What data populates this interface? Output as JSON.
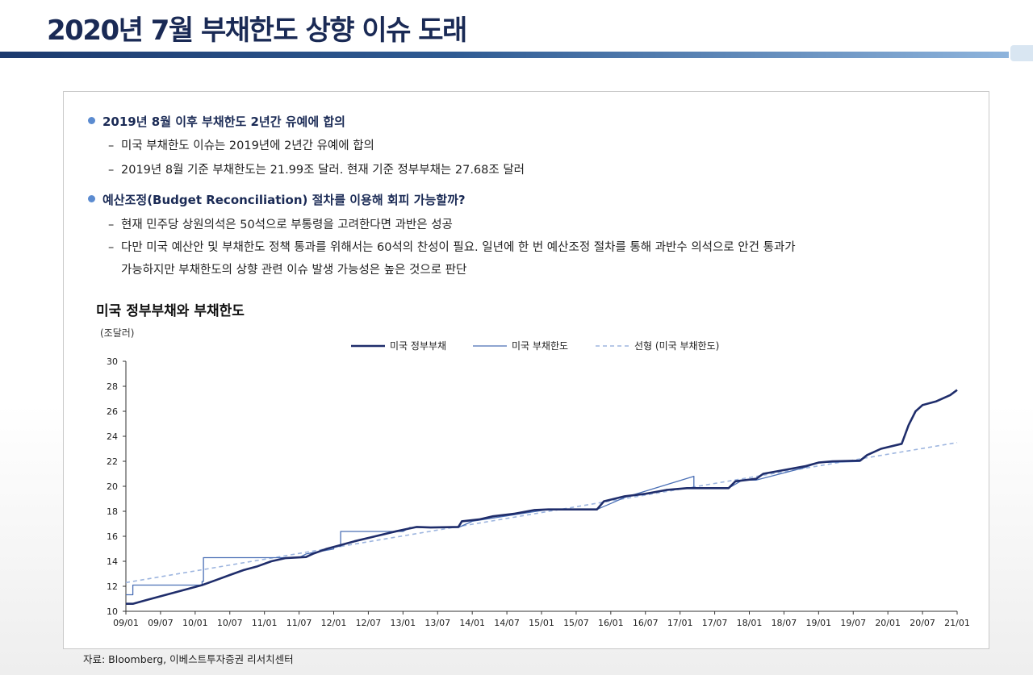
{
  "header": {
    "title": "2020년 7월 부채한도 상향 이슈 도래"
  },
  "bullets": [
    {
      "heading": "2019년 8월 이후 부채한도 2년간 유예에 합의",
      "items": [
        "미국 부채한도 이슈는 2019년에 2년간 유예에 합의",
        "2019년 8월 기준 부채한도는 21.99조 달러. 현재 기준 정부부채는 27.68조 달러"
      ]
    },
    {
      "heading": "예산조정(Budget Reconciliation) 절차를 이용해 회피 가능할까?",
      "items": [
        "현재 민주당 상원의석은 50석으로 부통령을 고려한다면 과반은 성공",
        "다만 미국 예산안 및 부채한도 정책 통과를 위해서는 60석의 찬성이 필요. 일년에 한 번 예산조정 절차를 통해 과반수 의석으로 안건 통과가"
      ],
      "continuation": "가능하지만 부채한도의 상향 관련 이슈 발생 가능성은 높은 것으로 판단"
    }
  ],
  "chart_data": {
    "type": "line",
    "title": "미국 정부부채와 부채한도",
    "ylabel": "(조달러)",
    "ylim": [
      10,
      30
    ],
    "yticks": [
      10,
      12,
      14,
      16,
      18,
      20,
      22,
      24,
      26,
      28,
      30
    ],
    "x_range": [
      2009.0,
      2021.0
    ],
    "categories": [
      "09/01",
      "09/07",
      "10/01",
      "10/07",
      "11/01",
      "11/07",
      "12/01",
      "12/07",
      "13/01",
      "13/07",
      "14/01",
      "14/07",
      "15/01",
      "15/07",
      "16/01",
      "16/07",
      "17/01",
      "17/07",
      "18/01",
      "18/07",
      "19/01",
      "19/07",
      "20/01",
      "20/07",
      "21/01"
    ],
    "legend_position": "top",
    "series": [
      {
        "name": "미국 정부부채",
        "style": "solid-thick",
        "color": "#1f2d6b",
        "points": [
          [
            2009.0,
            10.6
          ],
          [
            2009.1,
            10.6
          ],
          [
            2009.3,
            10.9
          ],
          [
            2009.5,
            11.2
          ],
          [
            2009.7,
            11.5
          ],
          [
            2009.9,
            11.8
          ],
          [
            2010.1,
            12.1
          ],
          [
            2010.3,
            12.5
          ],
          [
            2010.5,
            12.9
          ],
          [
            2010.7,
            13.3
          ],
          [
            2010.9,
            13.6
          ],
          [
            2011.1,
            14.0
          ],
          [
            2011.3,
            14.25
          ],
          [
            2011.6,
            14.34
          ],
          [
            2011.7,
            14.6
          ],
          [
            2011.9,
            15.0
          ],
          [
            2012.1,
            15.3
          ],
          [
            2012.3,
            15.6
          ],
          [
            2012.6,
            16.0
          ],
          [
            2012.9,
            16.4
          ],
          [
            2013.2,
            16.75
          ],
          [
            2013.4,
            16.7
          ],
          [
            2013.8,
            16.75
          ],
          [
            2013.85,
            17.2
          ],
          [
            2014.1,
            17.35
          ],
          [
            2014.3,
            17.6
          ],
          [
            2014.6,
            17.8
          ],
          [
            2014.9,
            18.1
          ],
          [
            2015.1,
            18.15
          ],
          [
            2015.8,
            18.15
          ],
          [
            2015.9,
            18.8
          ],
          [
            2016.2,
            19.2
          ],
          [
            2016.5,
            19.4
          ],
          [
            2016.8,
            19.7
          ],
          [
            2017.1,
            19.85
          ],
          [
            2017.7,
            19.85
          ],
          [
            2017.8,
            20.4
          ],
          [
            2018.1,
            20.6
          ],
          [
            2018.2,
            21.0
          ],
          [
            2018.5,
            21.3
          ],
          [
            2018.8,
            21.6
          ],
          [
            2019.0,
            21.9
          ],
          [
            2019.2,
            22.0
          ],
          [
            2019.6,
            22.05
          ],
          [
            2019.7,
            22.5
          ],
          [
            2019.9,
            23.0
          ],
          [
            2020.2,
            23.4
          ],
          [
            2020.3,
            24.9
          ],
          [
            2020.4,
            26.0
          ],
          [
            2020.5,
            26.5
          ],
          [
            2020.7,
            26.8
          ],
          [
            2020.9,
            27.3
          ],
          [
            2021.0,
            27.7
          ]
        ]
      },
      {
        "name": "미국 부채한도",
        "style": "solid-thin",
        "color": "#4a6fb5",
        "points": [
          [
            2009.0,
            11.32
          ],
          [
            2009.1,
            11.32
          ],
          [
            2009.1,
            12.1
          ],
          [
            2010.1,
            12.1
          ],
          [
            2010.1,
            12.39
          ],
          [
            2010.12,
            12.39
          ],
          [
            2010.12,
            14.29
          ],
          [
            2011.5,
            14.29
          ],
          [
            2011.6,
            14.59
          ],
          [
            2011.7,
            14.69
          ],
          [
            2012.0,
            14.99
          ],
          [
            2012.0,
            15.19
          ],
          [
            2012.1,
            15.19
          ],
          [
            2012.1,
            16.39
          ],
          [
            2013.0,
            16.39
          ],
          [
            2013.1,
            16.7
          ],
          [
            2013.8,
            16.7
          ],
          [
            2014.0,
            17.2
          ],
          [
            2015.1,
            18.15
          ],
          [
            2015.8,
            18.15
          ],
          [
            2016.2,
            19.1
          ],
          [
            2017.2,
            20.8
          ],
          [
            2017.2,
            19.85
          ],
          [
            2017.7,
            19.85
          ],
          [
            2017.9,
            20.5
          ],
          [
            2018.1,
            20.5
          ],
          [
            2018.8,
            21.5
          ],
          [
            2019.0,
            21.9
          ],
          [
            2019.6,
            21.99
          ]
        ]
      },
      {
        "name": "선형 (미국 부채한도)",
        "style": "dashed",
        "color": "#9db5df",
        "points": [
          [
            2009.0,
            12.3
          ],
          [
            2021.0,
            23.5
          ]
        ]
      }
    ]
  },
  "source": "자료: Bloomberg, 이베스트투자증권 리서치센터"
}
